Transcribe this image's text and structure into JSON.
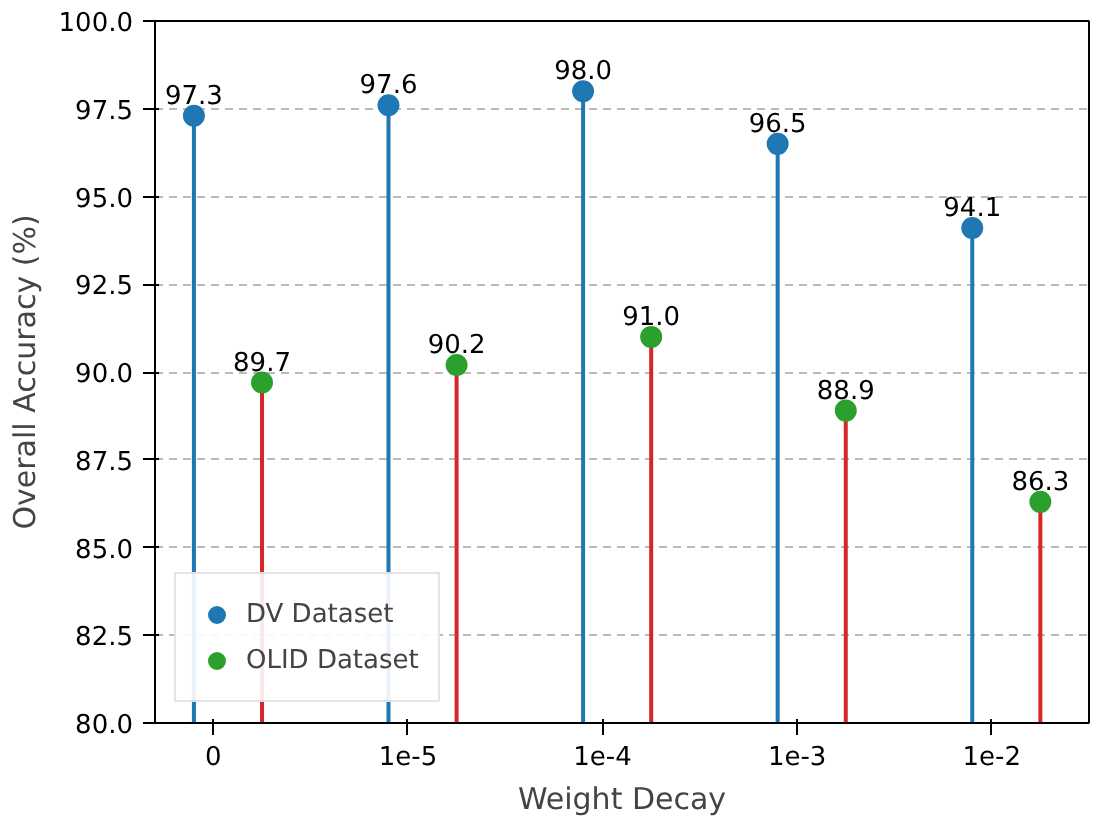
{
  "chart_data": {
    "type": "lollipop",
    "xlabel": "Weight Decay",
    "ylabel": "Overall Accuracy (%)",
    "categories": [
      "0",
      "1e-5",
      "1e-4",
      "1e-3",
      "1e-2"
    ],
    "series": [
      {
        "name": "DV Dataset",
        "color": "#1f77b4",
        "values": [
          97.3,
          97.6,
          98.0,
          96.5,
          94.1
        ],
        "value_labels": [
          "97.3",
          "97.6",
          "98.0",
          "96.5",
          "94.1"
        ]
      },
      {
        "name": "OLID Dataset",
        "color": "#2ca02c",
        "values": [
          89.7,
          90.2,
          91.0,
          88.9,
          86.3
        ],
        "value_labels": [
          "89.7",
          "90.2",
          "91.0",
          "88.9",
          "86.3"
        ]
      }
    ],
    "ylim": [
      80,
      100
    ],
    "yticks": [
      {
        "value": 80,
        "label": "80.0"
      },
      {
        "value": 82.5,
        "label": "82.5"
      },
      {
        "value": 85,
        "label": "85.0"
      },
      {
        "value": 87.5,
        "label": "87.5"
      },
      {
        "value": 90,
        "label": "90.0"
      },
      {
        "value": 92.5,
        "label": "92.5"
      },
      {
        "value": 95,
        "label": "95.0"
      },
      {
        "value": 97.5,
        "label": "97.5"
      },
      {
        "value": 100,
        "label": "100.0"
      }
    ],
    "grid": "y",
    "legend": "bottom left",
    "marker": "circle"
  }
}
